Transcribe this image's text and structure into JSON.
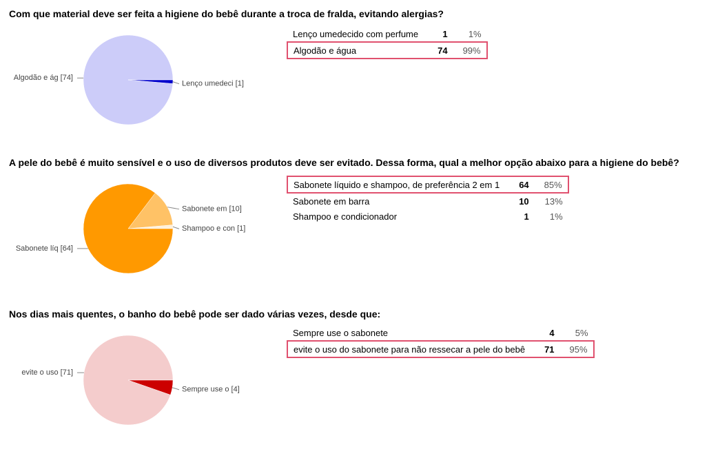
{
  "chart_data": [
    {
      "type": "pie",
      "title": "Com que material deve ser feita a higiene do bebê durante a troca de fralda, evitando alergias?",
      "categories": [
        "Lenço umedecido com perfume",
        "Algodão e água"
      ],
      "values": [
        1,
        74
      ],
      "share_labels": [
        "1%",
        "99%"
      ],
      "slice_labels": [
        "Lenço umedeci [1]",
        "Algodão e ág [74]"
      ],
      "colors": [
        "#0000cc",
        "#ccccf9"
      ],
      "highlighted": 1
    },
    {
      "type": "pie",
      "title": "A pele do bebê é muito sensível e o uso de diversos produtos deve ser evitado. Dessa forma, qual a melhor opção abaixo para a higiene do bebê?",
      "categories": [
        "Sabonete líquido e shampoo, de preferência 2 em 1",
        "Sabonete em barra",
        "Shampoo e condicionador"
      ],
      "values": [
        64,
        10,
        1
      ],
      "share_labels": [
        "85%",
        "13%",
        "1%"
      ],
      "slice_labels": [
        "Sabonete líq [64]",
        "Sabonete em  [10]",
        "Shampoo e con [1]"
      ],
      "colors": [
        "#ff9900",
        "#ffc266",
        "#fff0da"
      ],
      "highlighted": 0
    },
    {
      "type": "pie",
      "title": "Nos dias mais quentes, o banho do bebê pode ser dado várias vezes, desde que:",
      "categories": [
        "Sempre use o sabonete",
        "evite o uso do sabonete para não ressecar a pele do bebê"
      ],
      "values": [
        4,
        71
      ],
      "share_labels": [
        "5%",
        "95%"
      ],
      "slice_labels": [
        "Sempre use o  [4]",
        "evite o uso  [71]"
      ],
      "colors": [
        "#cc0000",
        "#f4cccc"
      ],
      "highlighted": 1
    }
  ]
}
